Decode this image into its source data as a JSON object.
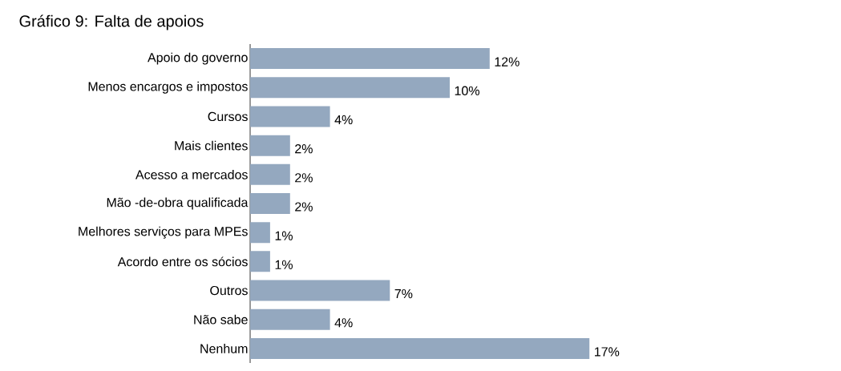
{
  "chart_data": {
    "type": "bar",
    "orientation": "horizontal",
    "title": "Gráfico 9: Falta de apoios",
    "categories": [
      "Apoio do governo",
      "Menos encargos e impostos",
      "Cursos",
      "Mais clientes",
      "Acesso a mercados",
      "Mão -de-obra qualificada",
      "Melhores serviços para MPEs",
      "Acordo entre os sócios",
      "Outros",
      "Não sabe",
      "Nenhum"
    ],
    "values": [
      12,
      10,
      4,
      2,
      2,
      2,
      1,
      1,
      7,
      4,
      17
    ],
    "value_labels": [
      "12%",
      "10%",
      "4%",
      "2%",
      "2%",
      "2%",
      "1%",
      "1%",
      "7%",
      "4%",
      "17%"
    ],
    "color": "#94a8bf"
  }
}
